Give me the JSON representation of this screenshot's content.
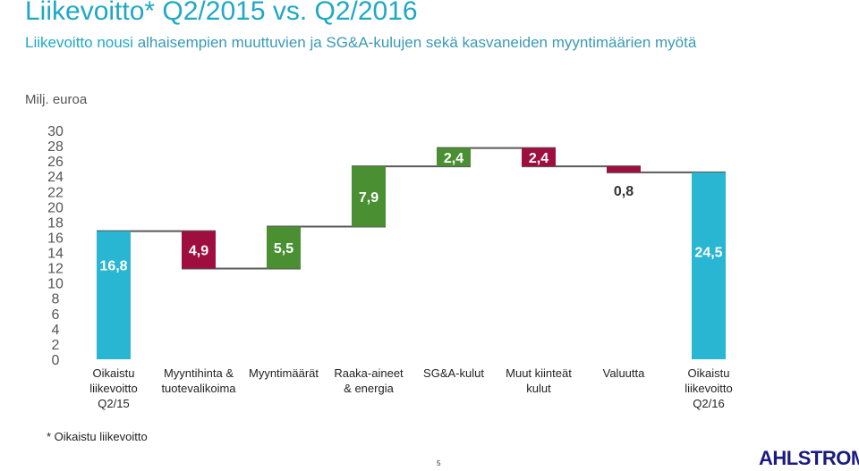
{
  "page": {
    "title": "Liikevoitto* Q2/2015 vs. Q2/2016",
    "subtitle_lead": "Liikevoitto nousi",
    "subtitle_rest": " alhaisempien muuttuvien ja SG&A-kulujen sekä kasvaneiden myyntimäärien myötä",
    "unit": "Milj. euroa",
    "footnote": "* Oikaistu liikevoitto",
    "page_number": "5",
    "logo_text": "AHLSTROM"
  },
  "colors": {
    "total": "#29b6d2",
    "increase": "#4a8f32",
    "decrease": "#9e0e3f",
    "connector": "#595959",
    "title": "#1fa8c6"
  },
  "chart_data": {
    "type": "bar",
    "subtype": "waterfall",
    "ylim": [
      0,
      30
    ],
    "yticks": [
      0,
      2,
      4,
      6,
      8,
      10,
      12,
      14,
      16,
      18,
      20,
      22,
      24,
      26,
      28,
      30
    ],
    "grid": false,
    "legend": "none",
    "steps": [
      {
        "category": "Oikaistu liikevoitto Q2/15",
        "lines": [
          "Oikaistu",
          "liikevoitto",
          "Q2/15"
        ],
        "kind": "total",
        "value": 16.8,
        "label": "16,8"
      },
      {
        "category": "Myyntihinta & tuotevalikoima",
        "lines": [
          "Myyntihinta &",
          "tuotevalikoima"
        ],
        "kind": "decrease",
        "value": -4.9,
        "label": "4,9"
      },
      {
        "category": "Myyntimäärät",
        "lines": [
          "Myyntimäärät"
        ],
        "kind": "increase",
        "value": 5.5,
        "label": "5,5"
      },
      {
        "category": "Raaka-aineet & energia",
        "lines": [
          "Raaka-aineet",
          "& energia"
        ],
        "kind": "increase",
        "value": 7.9,
        "label": "7,9"
      },
      {
        "category": "SG&A-kulut",
        "lines": [
          "SG&A-kulut"
        ],
        "kind": "increase",
        "value": 2.4,
        "label": "2,4"
      },
      {
        "category": "Muut kiinteät kulut",
        "lines": [
          "Muut kiinteät",
          "kulut"
        ],
        "kind": "decrease",
        "value": -2.4,
        "label": "2,4"
      },
      {
        "category": "Valuutta",
        "lines": [
          "Valuutta"
        ],
        "kind": "decrease",
        "value": -0.8,
        "label": "0,8"
      },
      {
        "category": "Oikaistu liikevoitto Q2/16",
        "lines": [
          "Oikaistu",
          "liikevoitto",
          "Q2/16"
        ],
        "kind": "total",
        "value": 24.5,
        "label": "24,5"
      }
    ]
  }
}
